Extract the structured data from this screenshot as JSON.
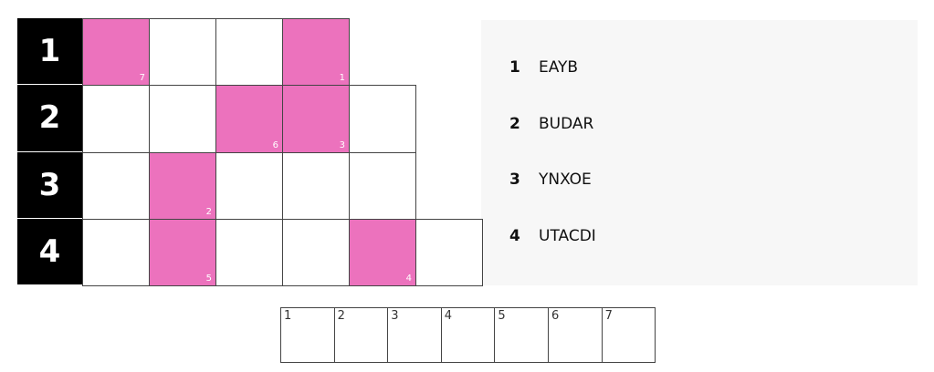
{
  "grid": {
    "rows": [
      {
        "label": "1",
        "cells": [
          "7",
          null,
          null,
          "1"
        ]
      },
      {
        "label": "2",
        "cells": [
          null,
          null,
          "6",
          "3",
          null
        ]
      },
      {
        "label": "3",
        "cells": [
          null,
          "2",
          null,
          null,
          null
        ]
      },
      {
        "label": "4",
        "cells": [
          null,
          "5",
          null,
          null,
          "4",
          null
        ]
      }
    ]
  },
  "clues": [
    {
      "number": "1",
      "word": "EAYB"
    },
    {
      "number": "2",
      "word": "BUDAR"
    },
    {
      "number": "3",
      "word": "YNXOE"
    },
    {
      "number": "4",
      "word": "UTACDI"
    }
  ],
  "answer_boxes": [
    "1",
    "2",
    "3",
    "4",
    "5",
    "6",
    "7"
  ]
}
